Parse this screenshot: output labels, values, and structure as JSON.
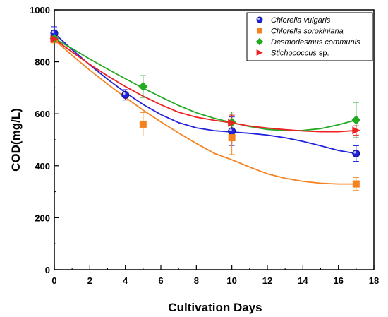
{
  "chart_data": {
    "type": "scatter",
    "xlabel": "Cultivation Days",
    "ylabel": "COD(mg/L)",
    "xlim": [
      0,
      18
    ],
    "ylim": [
      0,
      1000
    ],
    "xticks": [
      0,
      2,
      4,
      6,
      8,
      10,
      12,
      14,
      16,
      18
    ],
    "yticks": [
      0,
      200,
      400,
      600,
      800,
      1000
    ],
    "grid": false,
    "legend_position": "top-right",
    "series": [
      {
        "name": "Chlorella vulgaris",
        "legend_italic": "Chlorella vulgaris",
        "legend_plain": "",
        "marker": "circle",
        "color": "#2222dd",
        "x": [
          0,
          4,
          10,
          17
        ],
        "y": [
          910,
          673,
          533,
          447
        ],
        "err": [
          25,
          20,
          55,
          30
        ],
        "fit_x": [
          0,
          1,
          2,
          3,
          4,
          5,
          6,
          7,
          8,
          9,
          10,
          11,
          12,
          13,
          14,
          15,
          16,
          17
        ],
        "fit_y": [
          910,
          847,
          788,
          733,
          682,
          636,
          597,
          566,
          546,
          535,
          530,
          525,
          518,
          508,
          494,
          477,
          459,
          447
        ]
      },
      {
        "name": "Chlorella sorokiniana",
        "legend_italic": "Chlorella sorokiniana",
        "legend_plain": "",
        "marker": "square",
        "color": "#f58220",
        "x": [
          0,
          5,
          10,
          17
        ],
        "y": [
          885,
          560,
          508,
          330
        ],
        "err": [
          10,
          45,
          65,
          25
        ],
        "fit_x": [
          0,
          1,
          2,
          3,
          4,
          5,
          6,
          7,
          8,
          9,
          10,
          11,
          12,
          13,
          14,
          15,
          16,
          17
        ],
        "fit_y": [
          885,
          825,
          768,
          714,
          663,
          614,
          569,
          526,
          486,
          448,
          423,
          395,
          369,
          352,
          340,
          333,
          330,
          330
        ]
      },
      {
        "name": "Desmodesmus communis",
        "legend_italic": "Desmodesmus communis",
        "legend_plain": "",
        "marker": "diamond",
        "color": "#22aa22",
        "x": [
          0,
          5,
          10,
          17
        ],
        "y": [
          890,
          705,
          567,
          576
        ],
        "err": [
          12,
          42,
          40,
          68
        ],
        "fit_x": [
          0,
          1,
          2,
          3,
          4,
          5,
          6,
          7,
          8,
          9,
          10,
          11,
          12,
          13,
          14,
          15,
          16,
          17
        ],
        "fit_y": [
          890,
          851,
          811,
          772,
          735,
          699,
          665,
          632,
          604,
          583,
          566,
          551,
          540,
          535,
          536,
          543,
          558,
          576
        ]
      },
      {
        "name": "Stichococcus sp.",
        "legend_italic": "Stichococcus",
        "legend_plain": " sp.",
        "marker": "triangle-right",
        "color": "#ee2222",
        "x": [
          0,
          10,
          17
        ],
        "y": [
          888,
          565,
          536
        ],
        "err": [
          10,
          30,
          18
        ],
        "fit_x": [
          0,
          1,
          2,
          3,
          4,
          5,
          6,
          7,
          8,
          9,
          10,
          11,
          12,
          13,
          14,
          15,
          16,
          17
        ],
        "fit_y": [
          888,
          838,
          790,
          746,
          705,
          668,
          635,
          606,
          587,
          575,
          565,
          553,
          545,
          539,
          534,
          531,
          531,
          536
        ]
      }
    ]
  }
}
